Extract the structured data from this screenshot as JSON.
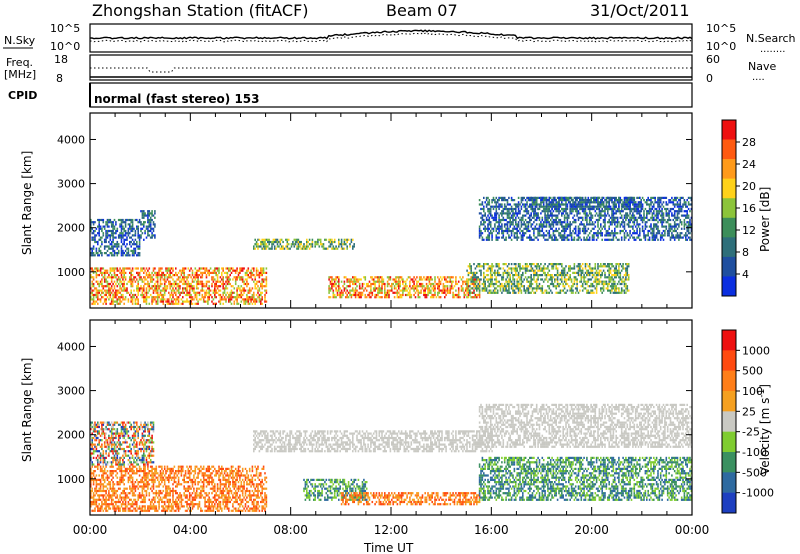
{
  "header": {
    "station": "Zhongshan Station (fitACF)",
    "beam": "Beam 07",
    "date": "31/Oct/2011"
  },
  "noise_panel": {
    "left_label": "N.Sky",
    "right_label": "N.Search",
    "right_legend": "........",
    "ticks_left": [
      "10^5",
      "10^0"
    ],
    "ticks_right": [
      "10^5",
      "10^0"
    ]
  },
  "freq_panel": {
    "label_line1": "Freq.",
    "label_line2": "[MHz]",
    "right_label": "Nave",
    "right_legend": "....",
    "ticks_left": [
      "18",
      "8"
    ],
    "ticks_right": [
      "60",
      "0"
    ]
  },
  "cpid": {
    "label": "CPID",
    "mode_text": "normal (fast stereo) 153"
  },
  "axes": {
    "ylabel": "Slant Range [km]",
    "xlabel": "Time UT",
    "y_ticks": [
      "1000",
      "2000",
      "3000",
      "4000"
    ],
    "x_ticks": [
      "00:00",
      "04:00",
      "08:00",
      "12:00",
      "16:00",
      "20:00",
      "00:00"
    ]
  },
  "power_scale": {
    "label": "Power [dB]",
    "ticks": [
      "4",
      "8",
      "12",
      "16",
      "20",
      "24",
      "28"
    ],
    "colors": [
      "#0b2fe0",
      "#1f4f9f",
      "#2e6f7a",
      "#3c8e5a",
      "#8cc43a",
      "#ffd21a",
      "#ff9a1a",
      "#ff5a10",
      "#ee1010"
    ]
  },
  "velocity_scale": {
    "label": "Velocity [m s",
    "label_sup": "-1",
    "label_end": "]",
    "ticks": [
      "1000",
      "500",
      "100",
      "25",
      "-25",
      "-100",
      "-500",
      "-1000"
    ],
    "colors": [
      "#1d3fc0",
      "#2e6aa0",
      "#3a9060",
      "#7fcc30",
      "#c9c9c3",
      "#f5a020",
      "#ff7e18",
      "#ff4a10",
      "#ee1010"
    ]
  },
  "chart_data": [
    {
      "type": "heatmap",
      "title": "Power",
      "xlabel": "Time UT",
      "ylabel": "Slant Range [km]",
      "xlim": [
        0,
        24
      ],
      "ylim": [
        180,
        4600
      ],
      "colorbar": {
        "label": "Power [dB]",
        "range": [
          0,
          32
        ]
      },
      "regions": [
        {
          "t": [
            0.0,
            2.0
          ],
          "r": [
            1350,
            2200
          ],
          "level": "low"
        },
        {
          "t": [
            0.0,
            7.0
          ],
          "r": [
            250,
            1100
          ],
          "level": "high"
        },
        {
          "t": [
            2.0,
            2.6
          ],
          "r": [
            1700,
            2400
          ],
          "level": "low"
        },
        {
          "t": [
            6.5,
            10.5
          ],
          "r": [
            1500,
            1750
          ],
          "level": "medium"
        },
        {
          "t": [
            9.5,
            15.5
          ],
          "r": [
            400,
            900
          ],
          "level": "high"
        },
        {
          "t": [
            15.0,
            21.5
          ],
          "r": [
            500,
            1200
          ],
          "level": "medium"
        },
        {
          "t": [
            15.5,
            24.0
          ],
          "r": [
            1700,
            2700
          ],
          "level": "low"
        },
        {
          "t": [
            17.5,
            22.0
          ],
          "r": [
            2400,
            2700
          ],
          "level": "low"
        }
      ]
    },
    {
      "type": "heatmap",
      "title": "Velocity",
      "xlabel": "Time UT",
      "ylabel": "Slant Range [km]",
      "xlim": [
        0,
        24
      ],
      "ylim": [
        180,
        4600
      ],
      "colorbar": {
        "label": "Velocity [m s-1]",
        "range": [
          -1000,
          1000
        ]
      },
      "regions": [
        {
          "t": [
            0.0,
            7.0
          ],
          "r": [
            250,
            1300
          ],
          "level": "away"
        },
        {
          "t": [
            0.0,
            2.5
          ],
          "r": [
            1300,
            2300
          ],
          "level": "mixed"
        },
        {
          "t": [
            6.5,
            16.0
          ],
          "r": [
            1600,
            2100
          ],
          "level": "ground-scatter"
        },
        {
          "t": [
            8.5,
            11.0
          ],
          "r": [
            500,
            1000
          ],
          "level": "toward"
        },
        {
          "t": [
            10.0,
            15.5
          ],
          "r": [
            400,
            700
          ],
          "level": "away"
        },
        {
          "t": [
            15.5,
            24.0
          ],
          "r": [
            500,
            1500
          ],
          "level": "toward"
        },
        {
          "t": [
            15.5,
            24.0
          ],
          "r": [
            1700,
            2700
          ],
          "level": "ground-scatter"
        }
      ]
    }
  ]
}
